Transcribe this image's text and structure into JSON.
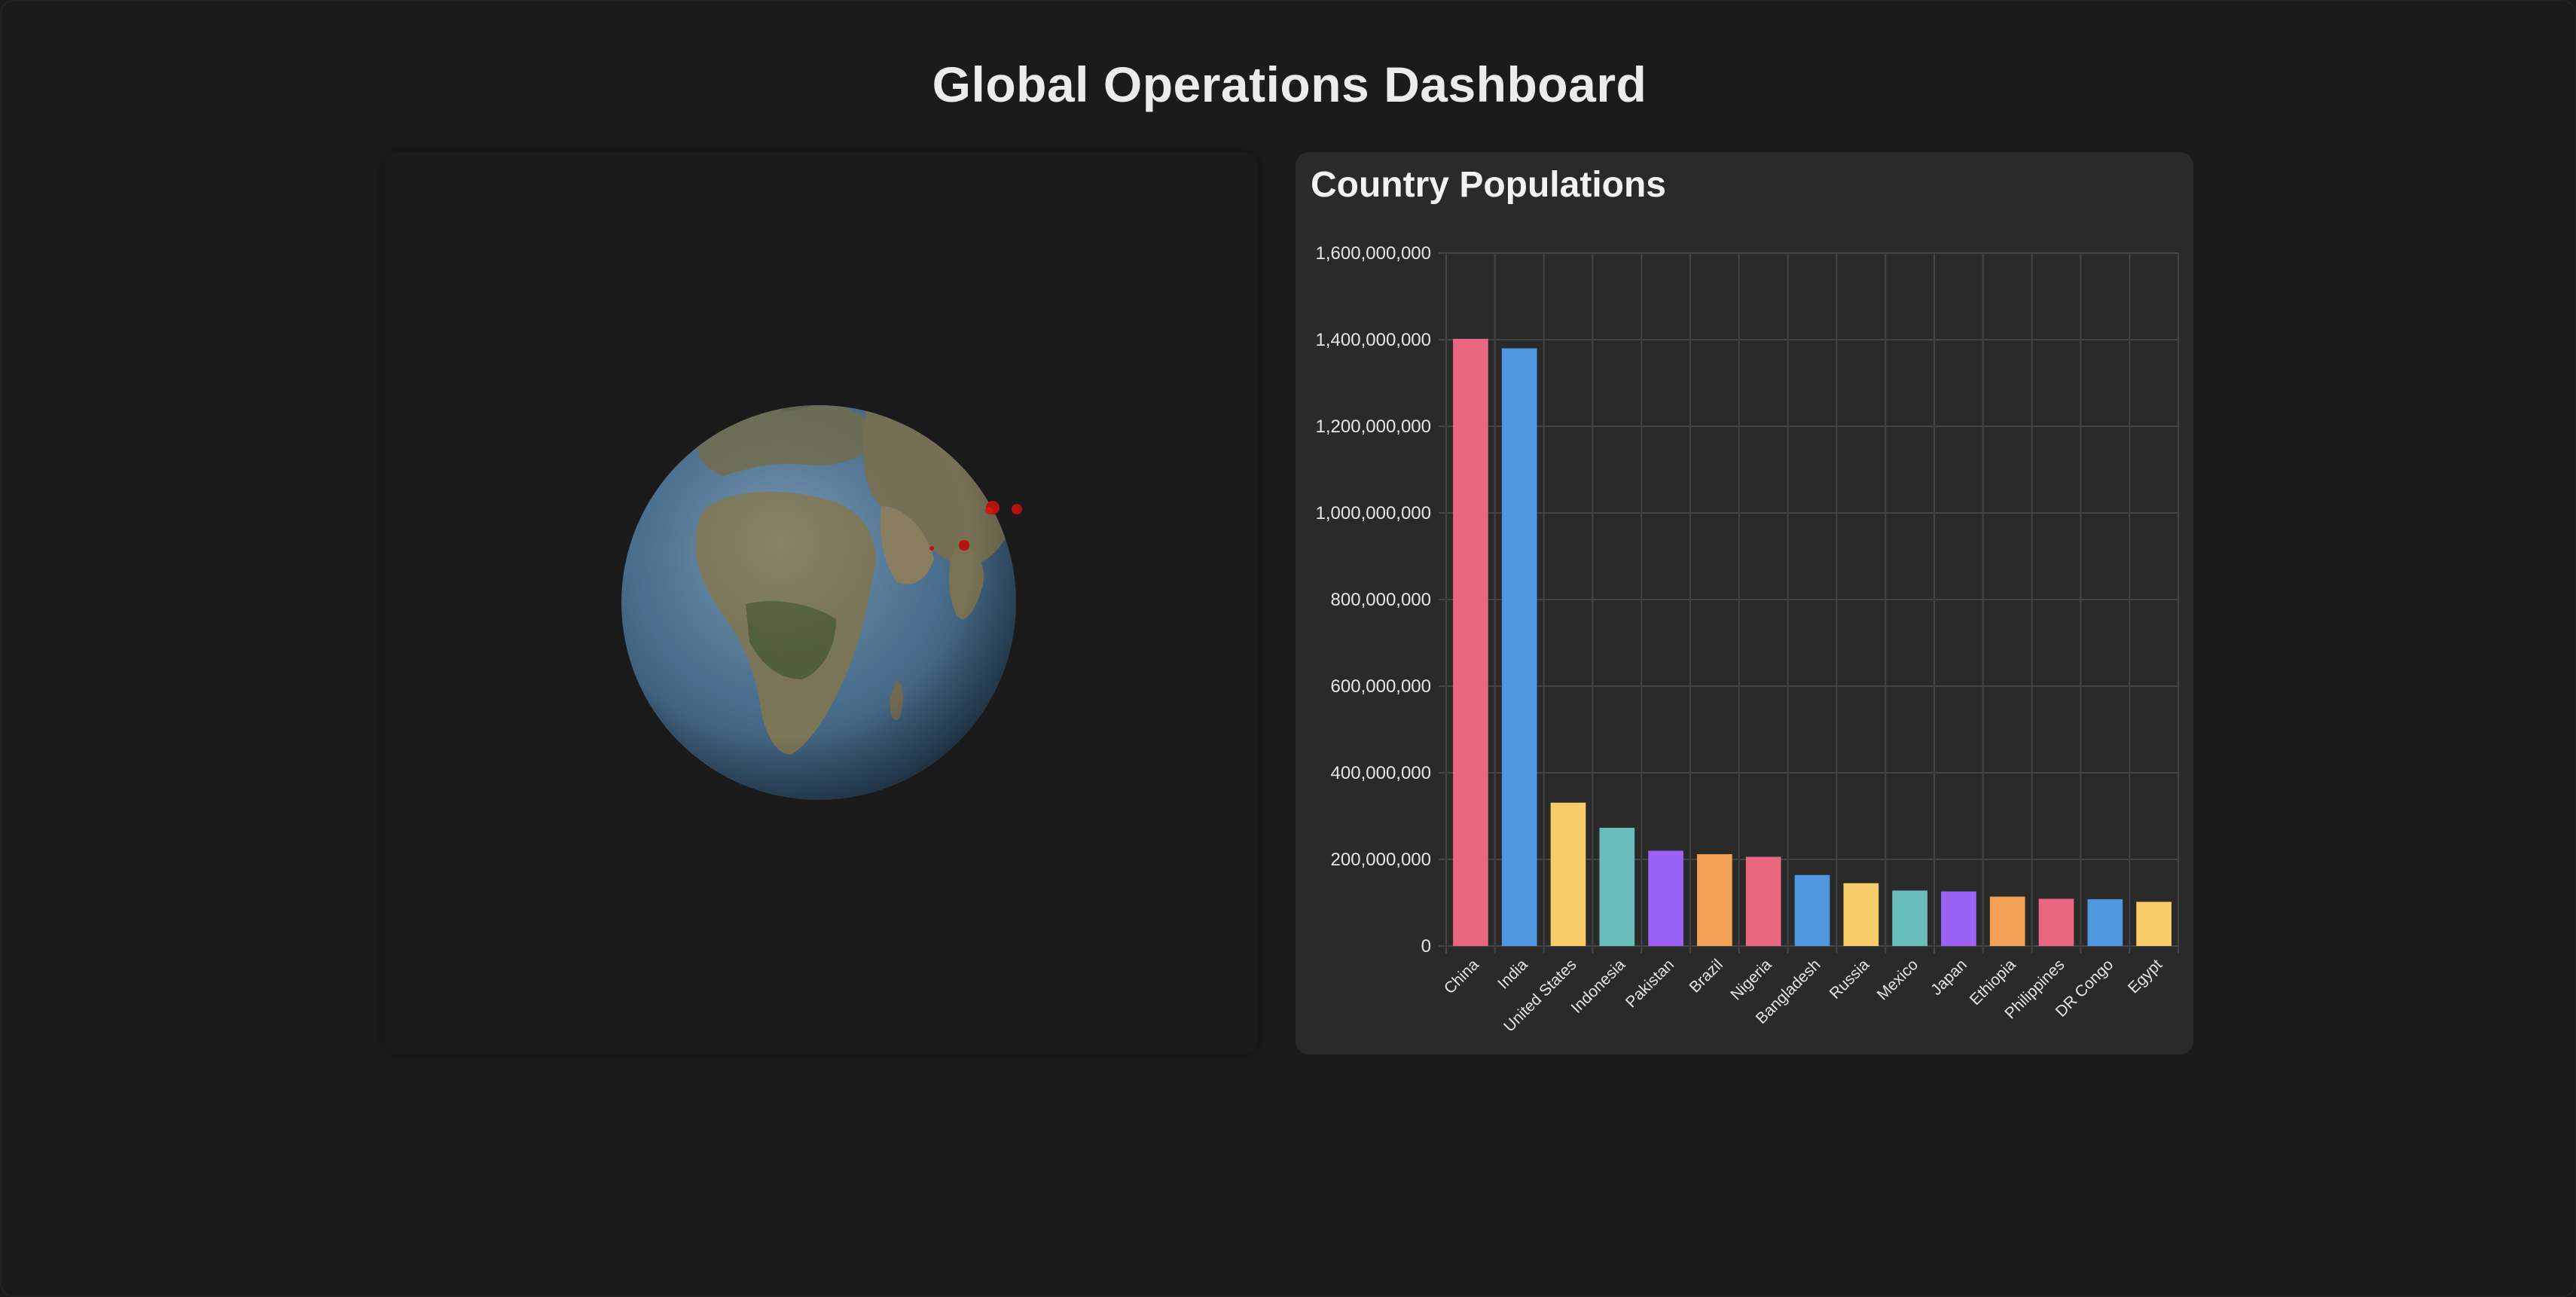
{
  "page": {
    "title": "Global Operations Dashboard"
  },
  "globe": {
    "label": "3D globe showing Europe, Africa and Asia with red markers",
    "ocean_color": "#4a6f8f",
    "land_color": "#6b6a55",
    "marker_color": "#c0140f"
  },
  "chart": {
    "title": "Country Populations"
  },
  "chart_data": {
    "type": "bar",
    "title": "Country Populations",
    "xlabel": "",
    "ylabel": "",
    "ylim": [
      0,
      1600000000
    ],
    "yticks": [
      0,
      200000000,
      400000000,
      600000000,
      800000000,
      1000000000,
      1200000000,
      1400000000,
      1600000000
    ],
    "ytick_labels": [
      "0",
      "200,000,000",
      "400,000,000",
      "600,000,000",
      "800,000,000",
      "1,000,000,000",
      "1,200,000,000",
      "1,400,000,000",
      "1,600,000,000"
    ],
    "grid": true,
    "categories": [
      "China",
      "India",
      "United States",
      "Indonesia",
      "Pakistan",
      "Brazil",
      "Nigeria",
      "Bangladesh",
      "Russia",
      "Mexico",
      "Japan",
      "Ethiopia",
      "Philippines",
      "DR Congo",
      "Egypt"
    ],
    "values": [
      1402000000,
      1380000000,
      331000000,
      273000000,
      220000000,
      212000000,
      206000000,
      164000000,
      145000000,
      128000000,
      126000000,
      114000000,
      109000000,
      108000000,
      102000000
    ],
    "colors": [
      "#e9677f",
      "#4f98e0",
      "#f7cd69",
      "#69bebc",
      "#9b63f5",
      "#f2a054",
      "#e9677f",
      "#4f98e0",
      "#f7cd69",
      "#69bebc",
      "#9b63f5",
      "#f2a054",
      "#e9677f",
      "#4f98e0",
      "#f7cd69"
    ]
  }
}
